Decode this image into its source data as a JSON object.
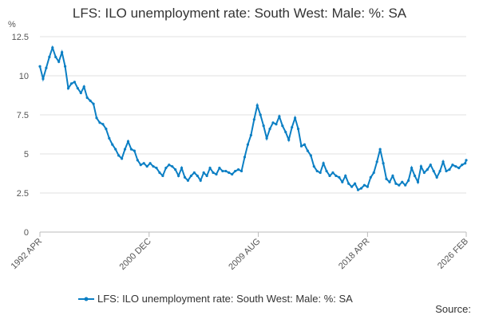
{
  "chart_data": {
    "type": "line",
    "title": "LFS: ILO unemployment rate: South West: Male: %: SA",
    "y_label": "%",
    "source": "Source:",
    "xlim": [
      "1992 APR",
      "2026 FEB"
    ],
    "xticks": [
      "1992 APR",
      "2000 DEC",
      "2009 AUG",
      "2018 APR",
      "2026 FEB"
    ],
    "ylim": [
      0,
      12.5
    ],
    "yticks": [
      0,
      2.5,
      5,
      7.5,
      10,
      12.5
    ],
    "grid": true,
    "legend": "bottom",
    "x": [
      "1992 APR",
      "1992 JUL",
      "1992 OCT",
      "1993 JAN",
      "1993 APR",
      "1993 JUL",
      "1993 OCT",
      "1994 JAN",
      "1994 APR",
      "1994 JUL",
      "1994 OCT",
      "1995 JAN",
      "1995 APR",
      "1995 JUL",
      "1995 OCT",
      "1996 JAN",
      "1996 APR",
      "1996 JUL",
      "1996 OCT",
      "1997 JAN",
      "1997 APR",
      "1997 JUL",
      "1997 OCT",
      "1998 JAN",
      "1998 APR",
      "1998 JUL",
      "1998 OCT",
      "1999 JAN",
      "1999 APR",
      "1999 JUL",
      "1999 OCT",
      "2000 JAN",
      "2000 APR",
      "2000 JUL",
      "2000 OCT",
      "2001 JAN",
      "2001 APR",
      "2001 JUL",
      "2001 OCT",
      "2002 JAN",
      "2002 APR",
      "2002 JUL",
      "2002 OCT",
      "2003 JAN",
      "2003 APR",
      "2003 JUL",
      "2003 OCT",
      "2004 JAN",
      "2004 APR",
      "2004 JUL",
      "2004 OCT",
      "2005 JAN",
      "2005 APR",
      "2005 JUL",
      "2005 OCT",
      "2006 JAN",
      "2006 APR",
      "2006 JUL",
      "2006 OCT",
      "2007 JAN",
      "2007 APR",
      "2007 JUL",
      "2007 OCT",
      "2008 JAN",
      "2008 APR",
      "2008 JUL",
      "2008 OCT",
      "2009 JAN",
      "2009 APR",
      "2009 JUL",
      "2009 OCT",
      "2010 JAN",
      "2010 APR",
      "2010 JUL",
      "2010 OCT",
      "2011 JAN",
      "2011 APR",
      "2011 JUL",
      "2011 OCT",
      "2012 JAN",
      "2012 APR",
      "2012 JUL",
      "2012 OCT",
      "2013 JAN",
      "2013 APR",
      "2013 JUL",
      "2013 OCT",
      "2014 JAN",
      "2014 APR",
      "2014 JUL",
      "2014 OCT",
      "2015 JAN",
      "2015 APR",
      "2015 JUL",
      "2015 OCT",
      "2016 JAN",
      "2016 APR",
      "2016 JUL",
      "2016 OCT",
      "2017 JAN",
      "2017 APR",
      "2017 JUL",
      "2017 OCT",
      "2018 JAN",
      "2018 APR",
      "2018 JUL",
      "2018 OCT",
      "2019 JAN",
      "2019 APR",
      "2019 JUL",
      "2019 OCT",
      "2020 JAN",
      "2020 APR",
      "2020 JUL",
      "2020 OCT",
      "2021 JAN",
      "2021 APR",
      "2021 JUL",
      "2021 OCT",
      "2022 JAN",
      "2022 APR",
      "2022 JUL",
      "2022 OCT",
      "2023 JAN",
      "2023 APR",
      "2023 JUL",
      "2023 OCT",
      "2024 JAN",
      "2024 APR",
      "2024 JUL",
      "2024 OCT",
      "2025 JAN",
      "2025 APR",
      "2025 JUL",
      "2025 OCT",
      "2026 JAN",
      "2026 FEB"
    ],
    "series": [
      {
        "name": "LFS: ILO unemployment rate: South West: Male: %: SA",
        "color": "#0b7fc4",
        "values": [
          10.6,
          9.8,
          10.5,
          11.2,
          11.8,
          11.2,
          10.9,
          11.5,
          10.6,
          9.2,
          9.5,
          9.6,
          9.2,
          8.9,
          9.3,
          8.6,
          8.4,
          8.2,
          7.3,
          7.0,
          6.9,
          6.6,
          6.0,
          5.6,
          5.3,
          4.9,
          4.7,
          5.3,
          5.8,
          5.3,
          5.2,
          4.6,
          4.3,
          4.4,
          4.2,
          4.4,
          4.2,
          4.1,
          3.8,
          3.6,
          4.1,
          4.3,
          4.2,
          4.0,
          3.6,
          4.1,
          3.5,
          3.3,
          3.6,
          3.8,
          3.6,
          3.3,
          3.8,
          3.6,
          4.1,
          3.8,
          3.7,
          4.1,
          3.9,
          3.9,
          3.8,
          3.7,
          3.9,
          4.0,
          3.9,
          4.8,
          5.6,
          6.2,
          7.2,
          8.1,
          7.5,
          6.8,
          6.0,
          6.6,
          7.0,
          6.9,
          7.4,
          6.8,
          6.4,
          5.9,
          6.7,
          7.3,
          6.6,
          5.5,
          5.6,
          5.2,
          4.9,
          4.2,
          3.9,
          3.8,
          4.4,
          3.9,
          3.6,
          3.8,
          3.6,
          3.5,
          3.2,
          3.6,
          3.1,
          2.9,
          3.1,
          2.7,
          2.8,
          3.0,
          2.9,
          3.5,
          3.8,
          4.5,
          5.3,
          4.4,
          3.4,
          3.2,
          3.6,
          3.1,
          3.0,
          3.2,
          3.0,
          3.3,
          4.1,
          3.6,
          3.2,
          4.2,
          3.8,
          4.0,
          4.3,
          3.9,
          3.5,
          3.9,
          4.5,
          3.9,
          4.0,
          4.3,
          4.2,
          4.1,
          4.3,
          4.4,
          4.6
        ]
      }
    ]
  }
}
